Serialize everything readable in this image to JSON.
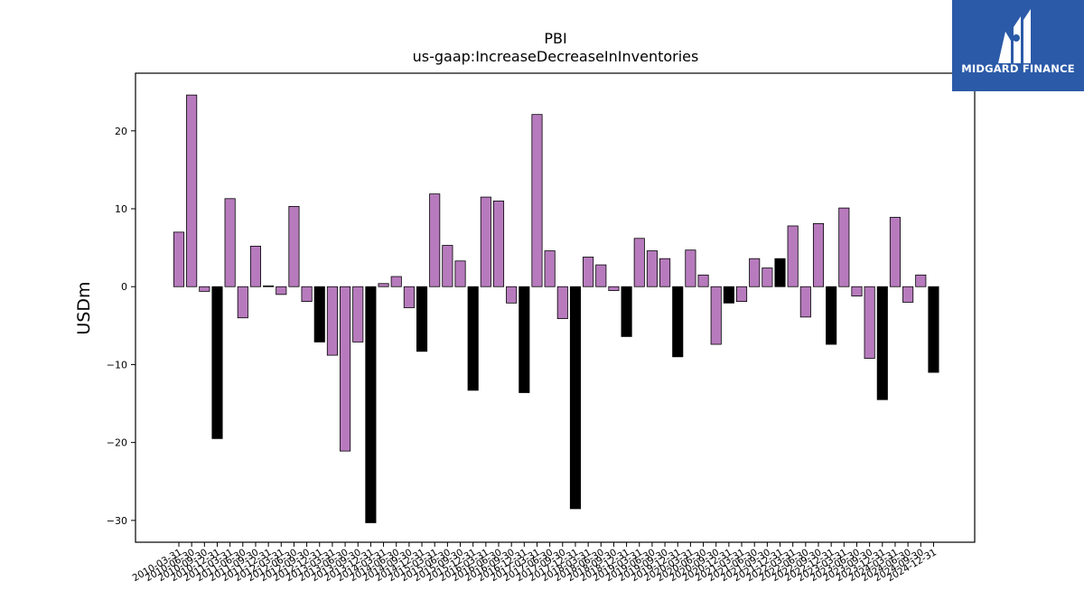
{
  "brand": {
    "name": "MIDGARD FINANCE",
    "bg_color": "#2b5aa8"
  },
  "chart_data": {
    "type": "bar",
    "title": "PBI",
    "subtitle": "us-gaap:IncreaseDecreaseInInventories",
    "xlabel": "",
    "ylabel": "USDm",
    "ylim": [
      -32.8,
      27.4
    ],
    "yticks": [
      -30,
      -20,
      -10,
      0,
      10,
      20
    ],
    "grid": false,
    "colors": {
      "quarter": "#b77bbd",
      "year_end": "#000000"
    },
    "categories": [
      "2010-03-31",
      "2010-06-30",
      "2010-09-30",
      "2010-12-31",
      "2011-03-31",
      "2011-06-30",
      "2011-09-30",
      "2011-12-31",
      "2012-03-31",
      "2012-06-30",
      "2012-09-30",
      "2012-12-31",
      "2013-03-31",
      "2013-06-30",
      "2013-09-30",
      "2013-12-31",
      "2014-03-31",
      "2014-06-30",
      "2014-09-30",
      "2014-12-31",
      "2015-03-31",
      "2015-06-30",
      "2015-09-30",
      "2015-12-31",
      "2016-03-31",
      "2016-06-30",
      "2016-09-30",
      "2016-12-31",
      "2017-03-31",
      "2017-06-30",
      "2017-09-30",
      "2017-12-31",
      "2018-03-31",
      "2018-06-30",
      "2018-09-30",
      "2018-12-31",
      "2019-03-31",
      "2019-06-30",
      "2019-09-30",
      "2019-12-31",
      "2020-03-31",
      "2020-06-30",
      "2020-09-30",
      "2020-12-31",
      "2021-03-31",
      "2021-06-30",
      "2021-09-30",
      "2021-12-31",
      "2022-03-31",
      "2022-06-30",
      "2022-09-30",
      "2022-12-31",
      "2023-03-31",
      "2023-06-30",
      "2023-09-30",
      "2023-12-31",
      "2024-03-31",
      "2024-06-30",
      "2024-09-30",
      "2024-12-31"
    ],
    "values": [
      7.0,
      24.6,
      -0.6,
      -19.5,
      11.3,
      -4.0,
      5.2,
      0.1,
      -1.0,
      10.3,
      -1.9,
      -7.1,
      -8.8,
      -21.1,
      -7.1,
      -30.3,
      0.4,
      1.3,
      -2.7,
      -8.3,
      11.9,
      5.3,
      3.3,
      -13.3,
      11.5,
      11.0,
      -2.1,
      -13.6,
      22.1,
      4.6,
      -4.1,
      -28.5,
      3.8,
      2.8,
      -0.5,
      -6.4,
      6.2,
      4.6,
      3.6,
      -9.0,
      4.7,
      1.5,
      -7.4,
      -2.1,
      -1.9,
      3.6,
      2.4,
      3.6,
      7.8,
      -3.9,
      8.1,
      -7.4,
      10.1,
      -1.2,
      -9.2,
      -14.5,
      8.9,
      -2.0,
      1.5,
      -11.0
    ],
    "highlight": [
      false,
      false,
      false,
      true,
      false,
      false,
      false,
      false,
      false,
      false,
      false,
      true,
      false,
      false,
      false,
      true,
      false,
      false,
      false,
      true,
      false,
      false,
      false,
      true,
      false,
      false,
      false,
      true,
      false,
      false,
      false,
      true,
      false,
      false,
      false,
      true,
      false,
      false,
      false,
      true,
      false,
      false,
      false,
      true,
      false,
      false,
      false,
      true,
      false,
      false,
      false,
      true,
      false,
      false,
      false,
      true,
      false,
      false,
      false,
      true
    ]
  }
}
